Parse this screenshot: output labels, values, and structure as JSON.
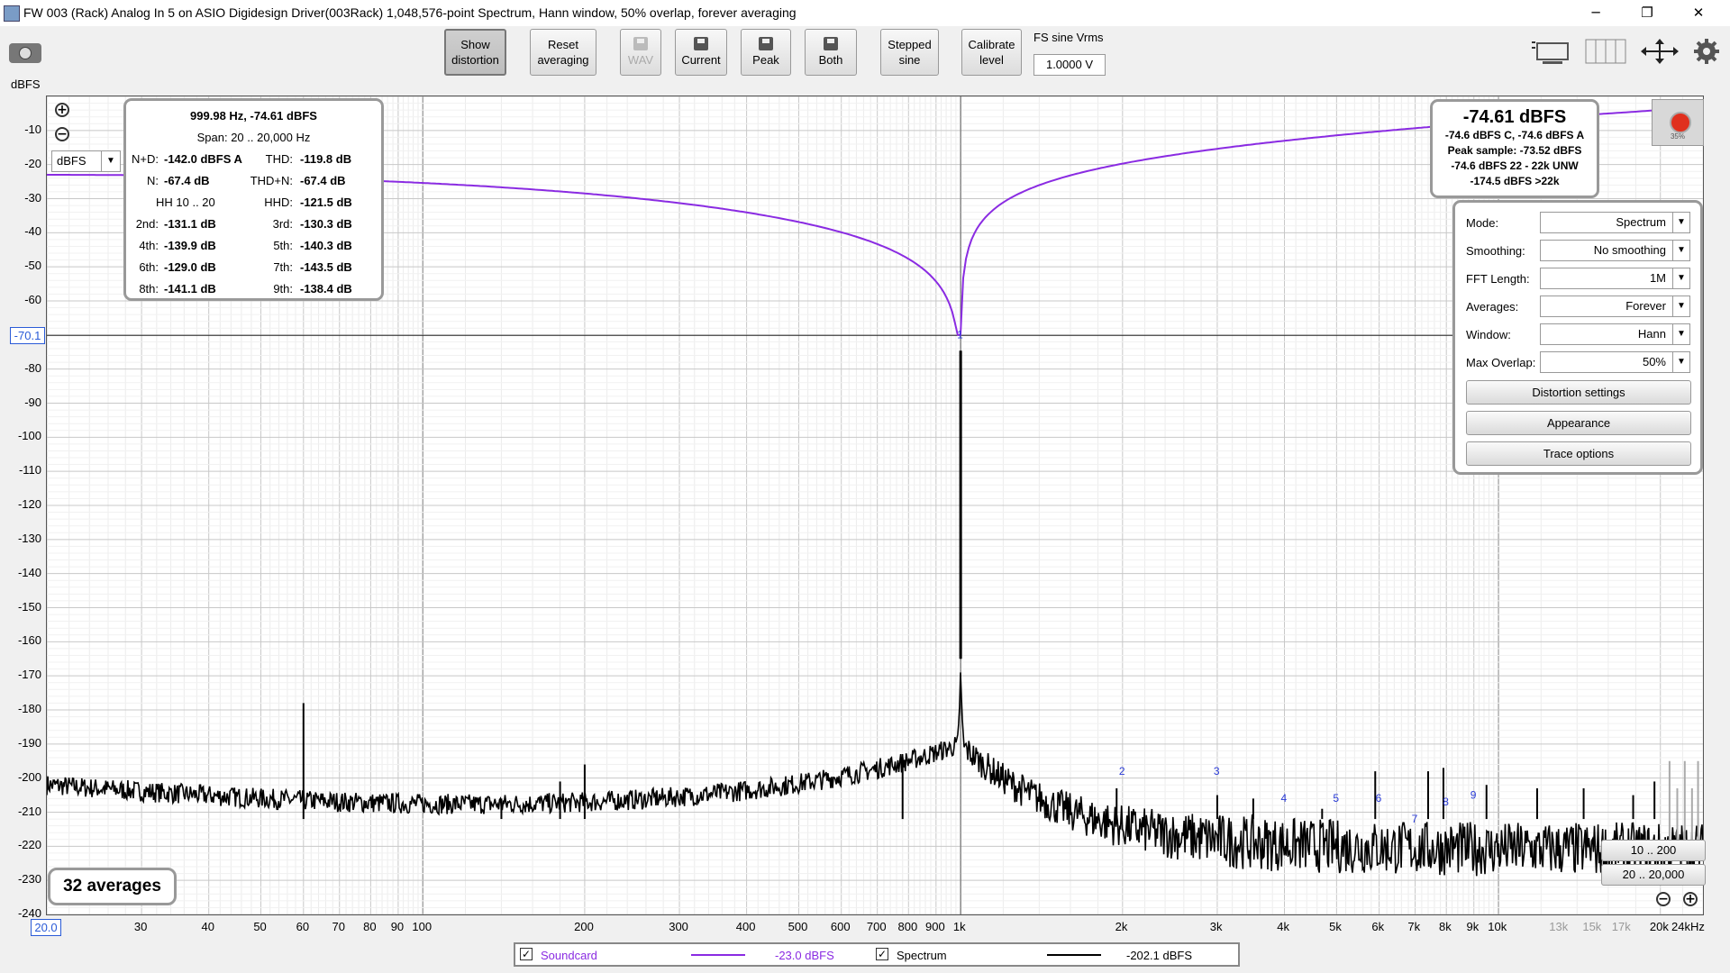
{
  "window": {
    "title": "FW 003 (Rack) Analog In 5 on ASIO Digidesign Driver(003Rack) 1,048,576-point Spectrum, Hann window, 50% overlap, forever averaging",
    "minimize": "─",
    "restore": "❐",
    "close": "✕"
  },
  "toolbar": {
    "show_distortion": [
      "Show",
      "distortion"
    ],
    "reset_averaging": [
      "Reset",
      "averaging"
    ],
    "wav": "WAV",
    "current": "Current",
    "peak": "Peak",
    "both": "Both",
    "stepped_sine": [
      "Stepped",
      "sine"
    ],
    "calibrate_level": [
      "Calibrate",
      "level"
    ],
    "fs_label": "FS sine Vrms",
    "fs_value": "1.0000 V"
  },
  "axes": {
    "y_unit": "dBFS",
    "cursor_y": "-70.1",
    "x_start": "20.0"
  },
  "distortion_panel": {
    "freq_level": "999.98 Hz, -74.61 dBFS",
    "span": "Span: 20 .. 20,000 Hz",
    "unit": "dBFS",
    "rows": [
      {
        "l1": "N+D:",
        "v1": "-142.0 dBFS A",
        "l2": "THD:",
        "v2": "-119.8 dB"
      },
      {
        "l1": "N:",
        "v1": "-67.4 dB",
        "l2": "THD+N:",
        "v2": "-67.4 dB"
      },
      {
        "l1": "HH 10 .. 20",
        "v1": "",
        "l2": "HHD:",
        "v2": "-121.5 dB"
      },
      {
        "l1": "2nd:",
        "v1": "-131.1 dB",
        "l2": "3rd:",
        "v2": "-130.3 dB"
      },
      {
        "l1": "4th:",
        "v1": "-139.9 dB",
        "l2": "5th:",
        "v2": "-140.3 dB"
      },
      {
        "l1": "6th:",
        "v1": "-129.0 dB",
        "l2": "7th:",
        "v2": "-143.5 dB"
      },
      {
        "l1": "8th:",
        "v1": "-141.1 dB",
        "l2": "9th:",
        "v2": "-138.4 dB"
      }
    ]
  },
  "level_panel": {
    "main": "-74.61 dBFS",
    "line1": "-74.6 dBFS C, -74.6 dBFS A",
    "line2": "Peak sample: -73.52 dBFS",
    "line3": "-74.6 dBFS 22 - 22k UNW",
    "line4": "-174.5 dBFS >22k"
  },
  "record": {
    "pct": "35%"
  },
  "controls": {
    "mode_label": "Mode:",
    "mode": "Spectrum",
    "smoothing_label": "Smoothing:",
    "smoothing": "No  smoothing",
    "fft_label": "FFT Length:",
    "fft": "1M",
    "averages_label": "Averages:",
    "averages": "Forever",
    "window_label": "Window:",
    "window": "Hann",
    "overlap_label": "Max Overlap:",
    "overlap": "50%",
    "distortion_settings": "Distortion settings",
    "appearance": "Appearance",
    "trace_options": "Trace options"
  },
  "averages_count": "32 averages",
  "range_buttons": {
    "r1": "10 .. 200",
    "r2": "20 .. 20,000"
  },
  "legend": {
    "soundcard": "Soundcard",
    "soundcard_level": "-23.0 dBFS",
    "soundcard_color": "#8a2be2",
    "spectrum": "Spectrum",
    "spectrum_level": "-202.1 dBFS",
    "spectrum_color": "#000000"
  },
  "chart_data": {
    "type": "line",
    "x_scale": "log",
    "xlim": [
      20,
      24000
    ],
    "ylim": [
      -240,
      0
    ],
    "y_ticks": [
      "-10",
      "-20",
      "-30",
      "-40",
      "-50",
      "-60",
      "-80",
      "-90",
      "-100",
      "-110",
      "-120",
      "-130",
      "-140",
      "-150",
      "-160",
      "-170",
      "-180",
      "-190",
      "-200",
      "-210",
      "-220",
      "-230",
      "-240"
    ],
    "x_ticks": [
      {
        "v": 30,
        "t": "30"
      },
      {
        "v": 40,
        "t": "40"
      },
      {
        "v": 50,
        "t": "50"
      },
      {
        "v": 60,
        "t": "60"
      },
      {
        "v": 70,
        "t": "70"
      },
      {
        "v": 80,
        "t": "80"
      },
      {
        "v": 90,
        "t": "90"
      },
      {
        "v": 100,
        "t": "100"
      },
      {
        "v": 200,
        "t": "200"
      },
      {
        "v": 300,
        "t": "300"
      },
      {
        "v": 400,
        "t": "400"
      },
      {
        "v": 500,
        "t": "500"
      },
      {
        "v": 600,
        "t": "600"
      },
      {
        "v": 700,
        "t": "700"
      },
      {
        "v": 800,
        "t": "800"
      },
      {
        "v": 900,
        "t": "900"
      },
      {
        "v": 1000,
        "t": "1k"
      },
      {
        "v": 2000,
        "t": "2k"
      },
      {
        "v": 3000,
        "t": "3k"
      },
      {
        "v": 4000,
        "t": "4k"
      },
      {
        "v": 5000,
        "t": "5k"
      },
      {
        "v": 6000,
        "t": "6k"
      },
      {
        "v": 7000,
        "t": "7k"
      },
      {
        "v": 8000,
        "t": "8k"
      },
      {
        "v": 9000,
        "t": "9k"
      },
      {
        "v": 10000,
        "t": "10k"
      },
      {
        "v": 13000,
        "t": "13k",
        "minor": true
      },
      {
        "v": 15000,
        "t": "15k",
        "minor": true
      },
      {
        "v": 17000,
        "t": "17k",
        "minor": true
      },
      {
        "v": 20000,
        "t": "20k"
      },
      {
        "v": 24000,
        "t": "24kHz"
      }
    ],
    "cursor_level": -70.1,
    "fundamental": {
      "freq": 1000,
      "level": -74.61
    },
    "noise_floor": {
      "start": -202,
      "near_fund": -190,
      "end": -221
    },
    "spurs": [
      {
        "freq": 60,
        "level": -178
      },
      {
        "freq": 140,
        "level": -206
      },
      {
        "freq": 180,
        "level": -201
      },
      {
        "freq": 200,
        "level": -196
      },
      {
        "freq": 780,
        "level": -194
      },
      {
        "freq": 1950,
        "level": -203
      },
      {
        "freq": 3000,
        "level": -205
      },
      {
        "freq": 3500,
        "level": -206
      },
      {
        "freq": 4700,
        "level": -209
      },
      {
        "freq": 5900,
        "level": -198
      },
      {
        "freq": 7400,
        "level": -198
      },
      {
        "freq": 7900,
        "level": -197
      },
      {
        "freq": 9500,
        "level": -202
      },
      {
        "freq": 11800,
        "level": -203
      },
      {
        "freq": 14400,
        "level": -203
      },
      {
        "freq": 17800,
        "level": -205
      },
      {
        "freq": 19500,
        "level": -201
      }
    ],
    "harmonic_markers": [
      {
        "n": "1",
        "freq": 1000,
        "level": -71
      },
      {
        "n": "2",
        "freq": 2000,
        "level": -199
      },
      {
        "n": "3",
        "freq": 3000,
        "level": -199
      },
      {
        "n": "4",
        "freq": 4000,
        "level": -207
      },
      {
        "n": "5",
        "freq": 5000,
        "level": -207
      },
      {
        "n": "6",
        "freq": 6000,
        "level": -207
      },
      {
        "n": "7",
        "freq": 7000,
        "level": -213
      },
      {
        "n": "8",
        "freq": 8000,
        "level": -208
      },
      {
        "n": "9",
        "freq": 9000,
        "level": -206
      }
    ],
    "soundcard_curve": {
      "low_level": -23.0,
      "dip_freq": 1000,
      "dip_level": -70,
      "high_level": -3
    }
  }
}
